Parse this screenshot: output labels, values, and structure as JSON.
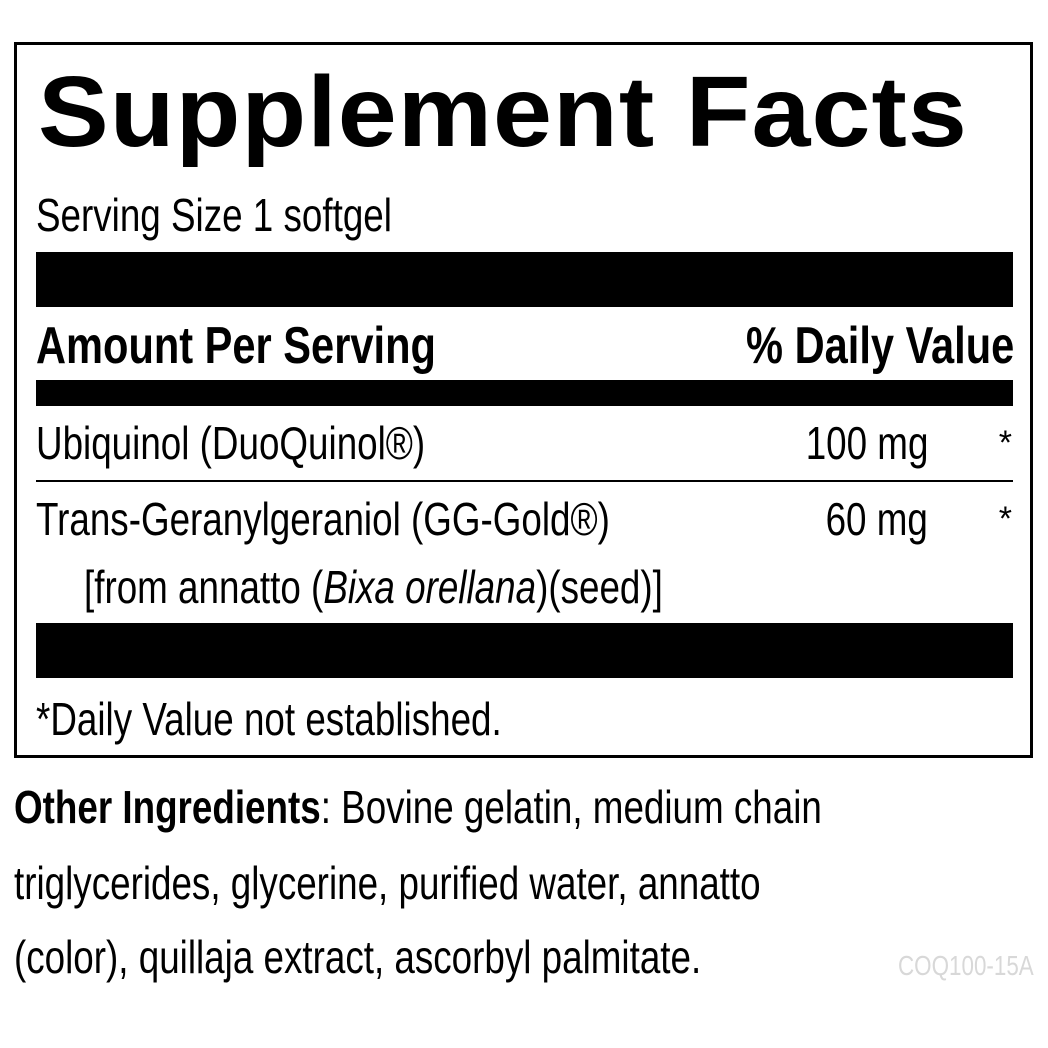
{
  "label": {
    "title": "Supplement Facts",
    "serving_size": "Serving Size 1 softgel",
    "header": {
      "amount": "Amount Per Serving",
      "dv": "% Daily Value"
    },
    "rows": [
      {
        "name": "Ubiquinol (DuoQuinol®)",
        "amount": "100 mg",
        "dv": "*"
      },
      {
        "name": "Trans-Geranylgeraniol (GG-Gold®)",
        "amount": "60 mg",
        "dv": "*",
        "source_prefix": "[from annatto (",
        "source_italic": "Bixa orellana",
        "source_suffix": ")(seed)]"
      }
    ],
    "footnote": "*Daily Value not established."
  },
  "other_ingredients": {
    "label": "Other Ingredients",
    "line1": ": Bovine gelatin, medium chain",
    "line2": "triglycerides, glycerine, purified water, annatto",
    "line3": "(color), quillaja extract, ascorbyl palmitate."
  },
  "code": "COQ100-15A"
}
